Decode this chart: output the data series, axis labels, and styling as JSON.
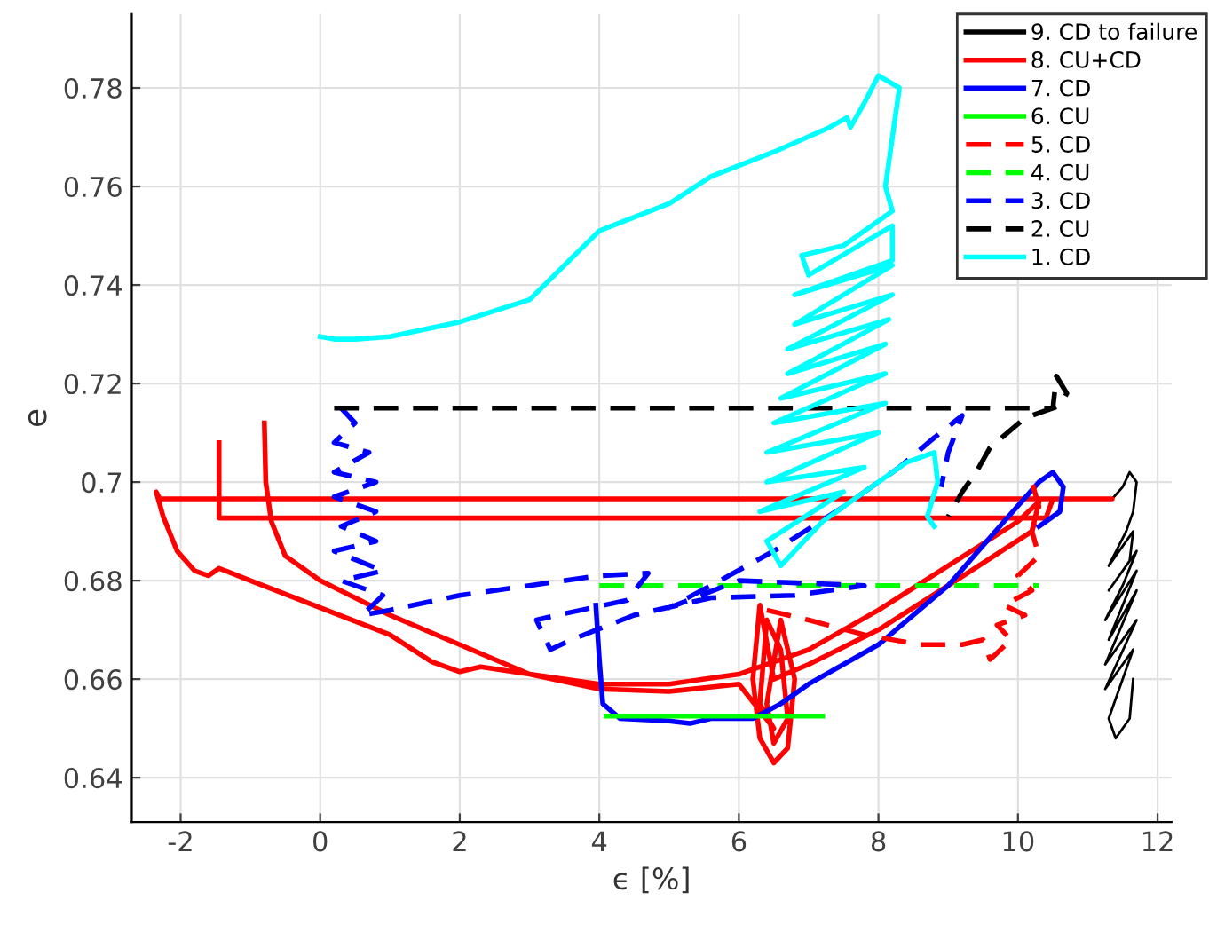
{
  "chart_data": {
    "type": "line",
    "xlabel": "ϵ [%]",
    "ylabel": "e",
    "xlim": [
      -2.7,
      12.2
    ],
    "ylim": [
      0.631,
      0.795
    ],
    "xticks": [
      -2,
      0,
      2,
      4,
      6,
      8,
      10,
      12
    ],
    "yticks": [
      0.64,
      0.66,
      0.68,
      0.7,
      0.72,
      0.74,
      0.76,
      0.78
    ],
    "grid": true,
    "legend": "top right",
    "series": [
      {
        "name": "9. CD to failure",
        "color": "#000000",
        "line_style": "solid",
        "x": [
          11.35,
          11.5,
          11.6,
          11.7,
          11.65,
          11.55,
          11.3,
          11.65,
          11.6,
          11.3,
          11.7,
          11.5,
          11.25,
          11.7,
          11.3,
          11.7,
          11.25,
          11.7,
          11.25,
          11.65,
          11.3,
          11.4,
          11.6,
          11.65
        ],
        "values": [
          0.6966,
          0.699,
          0.702,
          0.7,
          0.694,
          0.69,
          0.683,
          0.69,
          0.684,
          0.678,
          0.686,
          0.679,
          0.672,
          0.682,
          0.668,
          0.678,
          0.663,
          0.672,
          0.658,
          0.666,
          0.652,
          0.648,
          0.652,
          0.66
        ]
      },
      {
        "name": "8. CU+CD",
        "color": "#ff0000",
        "line_style": "solid",
        "x": [
          -1.45,
          -1.45,
          10.4,
          10.5,
          11.35,
          -2.3,
          -2.35,
          -2.25,
          -2.05,
          -1.8,
          -1.6,
          -1.45,
          -1.0,
          0,
          1,
          1.6,
          2.0,
          2.3,
          3,
          4,
          5,
          6,
          7,
          8,
          9,
          10,
          10.3,
          10.2,
          9,
          8,
          7,
          6.5,
          6.3,
          6.2,
          6.3,
          6.5,
          6.7,
          6.8,
          6.6,
          6.4,
          6.5,
          6.7,
          6.6,
          6.4,
          6.3,
          6.5,
          6,
          5,
          4,
          3,
          2,
          1,
          0,
          -0.5,
          -0.7,
          -0.78,
          -0.8
        ],
        "values": [
          0.708,
          0.6927,
          0.6927,
          0.6966,
          0.6966,
          0.6966,
          0.698,
          0.693,
          0.686,
          0.682,
          0.681,
          0.6825,
          0.68,
          0.6745,
          0.669,
          0.6635,
          0.6615,
          0.6625,
          0.661,
          0.659,
          0.659,
          0.661,
          0.666,
          0.674,
          0.683,
          0.692,
          0.696,
          0.69,
          0.679,
          0.67,
          0.663,
          0.66,
          0.675,
          0.66,
          0.648,
          0.643,
          0.646,
          0.66,
          0.672,
          0.655,
          0.647,
          0.652,
          0.666,
          0.672,
          0.655,
          0.65,
          0.659,
          0.6575,
          0.658,
          0.661,
          0.667,
          0.673,
          0.68,
          0.685,
          0.692,
          0.7,
          0.712
        ]
      },
      {
        "name": "7. CD",
        "color": "#0000ff",
        "line_style": "solid",
        "x": [
          3.95,
          4.0,
          4.05,
          4.3,
          5.0,
          5.3,
          5.6,
          6.2,
          6.6,
          7.0,
          8,
          9,
          9.8,
          10.3,
          10.5,
          10.65,
          10.6,
          10.3
        ],
        "values": [
          0.675,
          0.664,
          0.655,
          0.652,
          0.6515,
          0.651,
          0.652,
          0.652,
          0.655,
          0.659,
          0.667,
          0.679,
          0.692,
          0.7,
          0.702,
          0.699,
          0.694,
          0.691
        ]
      },
      {
        "name": "6. CU",
        "color": "#00ff00",
        "line_style": "solid",
        "x": [
          4.1,
          7.2
        ],
        "values": [
          0.6525,
          0.6525
        ]
      },
      {
        "name": "5. CD",
        "color": "#ff0000",
        "line_style": "dashed",
        "x": [
          6.4,
          7.0,
          7.8,
          8.6,
          9.2,
          9.5,
          9.6,
          9.9,
          9.7,
          10.1,
          9.8,
          10.2,
          10.0,
          10.3,
          10.2,
          10.3,
          10.2
        ],
        "values": [
          0.674,
          0.672,
          0.669,
          0.667,
          0.667,
          0.668,
          0.664,
          0.668,
          0.671,
          0.673,
          0.675,
          0.678,
          0.681,
          0.685,
          0.69,
          0.695,
          0.7
        ]
      },
      {
        "name": "4. CU",
        "color": "#00ff00",
        "line_style": "dashed",
        "x": [
          4.0,
          10.3
        ],
        "values": [
          0.679,
          0.679
        ]
      },
      {
        "name": "3. CD",
        "color": "#0000ff",
        "line_style": "dashed",
        "x": [
          0.3,
          0.5,
          0.2,
          0.7,
          0.2,
          0.8,
          0.2,
          0.8,
          0.3,
          0.8,
          0.2,
          0.9,
          0.3,
          0.9,
          0.6,
          1.0,
          2.0,
          3.0,
          4.0,
          4.7,
          4.4,
          3.4,
          3.1,
          3.3,
          3.6,
          4.5,
          5.6,
          6.8,
          7.8,
          6.0,
          5.0,
          5.6,
          6.5,
          7.5,
          8.3,
          8.8,
          9.2,
          9.0,
          8.9
        ],
        "values": [
          0.715,
          0.712,
          0.708,
          0.706,
          0.702,
          0.7,
          0.697,
          0.694,
          0.691,
          0.688,
          0.686,
          0.682,
          0.68,
          0.677,
          0.673,
          0.674,
          0.677,
          0.679,
          0.681,
          0.6815,
          0.676,
          0.673,
          0.672,
          0.666,
          0.668,
          0.673,
          0.6765,
          0.677,
          0.679,
          0.68,
          0.6745,
          0.679,
          0.686,
          0.695,
          0.703,
          0.709,
          0.7135,
          0.706,
          0.699
        ]
      },
      {
        "name": "2. CU",
        "color": "#000000",
        "line_style": "dashed",
        "x": [
          0.2,
          10.5,
          10.55,
          10.7,
          10.6,
          10.1,
          9.6,
          9.4,
          9.2,
          9.0
        ],
        "values": [
          0.715,
          0.715,
          0.7215,
          0.718,
          0.7155,
          0.713,
          0.707,
          0.702,
          0.698,
          0.693
        ]
      },
      {
        "name": "1. CD",
        "color": "#00ffff",
        "line_style": "solid",
        "x": [
          0,
          0.2,
          0.5,
          1,
          2,
          3,
          4,
          5,
          5.6,
          6.5,
          7.3,
          7.55,
          7.6,
          7.8,
          8.0,
          8.3,
          8.2,
          8.1,
          8.2,
          7.5,
          6.9,
          7.0,
          8.2,
          8.2,
          6.8,
          8.2,
          6.8,
          8.2,
          6.7,
          8.15,
          6.7,
          8.1,
          6.6,
          8.1,
          6.5,
          8.1,
          6.4,
          8.0,
          6.4,
          7.8,
          6.3,
          7.5,
          6.4,
          6.6,
          7.2,
          8.0,
          8.4,
          8.8,
          8.85,
          8.7,
          8.8
        ],
        "values": [
          0.7295,
          0.729,
          0.729,
          0.7295,
          0.7325,
          0.737,
          0.751,
          0.7565,
          0.762,
          0.767,
          0.772,
          0.774,
          0.772,
          0.777,
          0.7825,
          0.78,
          0.77,
          0.76,
          0.755,
          0.748,
          0.746,
          0.742,
          0.752,
          0.745,
          0.738,
          0.744,
          0.732,
          0.738,
          0.727,
          0.733,
          0.722,
          0.728,
          0.717,
          0.722,
          0.712,
          0.716,
          0.706,
          0.71,
          0.7,
          0.703,
          0.694,
          0.698,
          0.688,
          0.683,
          0.692,
          0.7,
          0.704,
          0.706,
          0.7,
          0.693,
          0.691
        ]
      }
    ]
  }
}
